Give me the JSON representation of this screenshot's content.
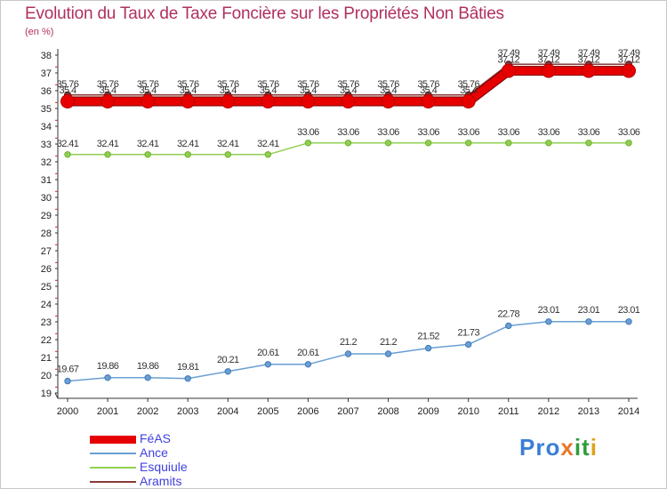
{
  "header": {
    "title": "Evolution du Taux de Taxe Foncière sur les Propriétés Non Bâties",
    "unit": "(en %)"
  },
  "logo": {
    "text": "Proxiti",
    "parts": [
      "Pro",
      "x",
      "it",
      "i"
    ]
  },
  "chart_data": {
    "type": "line",
    "title": "Evolution du Taux de Taxe Foncière sur les Propriétés Non Bâties",
    "ylabel": "(en %)",
    "xlabel": "",
    "ylim": [
      19,
      38
    ],
    "yticks": [
      19,
      20,
      21,
      22,
      23,
      24,
      25,
      26,
      27,
      28,
      29,
      30,
      31,
      32,
      33,
      34,
      35,
      36,
      37,
      38
    ],
    "x": [
      "2000",
      "2001",
      "2002",
      "2003",
      "2004",
      "2005",
      "2006",
      "2007",
      "2008",
      "2009",
      "2010",
      "2011",
      "2012",
      "2013",
      "2014"
    ],
    "grid": false,
    "legend_position": "bottom-left",
    "series": [
      {
        "name": "FéAS",
        "color": "#e60000",
        "values": [
          35.4,
          35.4,
          35.4,
          35.4,
          35.4,
          35.4,
          35.4,
          35.4,
          35.4,
          35.4,
          35.4,
          37.12,
          37.12,
          37.12,
          37.12
        ],
        "labels": [
          "35.4",
          "35.4",
          "35.4",
          "35.4",
          "35.4",
          "35.4",
          "35.4",
          "35.4",
          "35.4",
          "35.4",
          "35.4",
          "37.12",
          "37.12",
          "37.12",
          "37.12"
        ]
      },
      {
        "name": "Ance",
        "color": "#6a9fd4",
        "values": [
          19.67,
          19.86,
          19.86,
          19.81,
          20.21,
          20.61,
          20.61,
          21.2,
          21.2,
          21.52,
          21.73,
          22.78,
          23.01,
          23.01,
          23.01
        ],
        "labels": [
          "19.67",
          "19.86",
          "19.86",
          "19.81",
          "20.21",
          "20.61",
          "20.61",
          "21.2",
          "21.2",
          "21.52",
          "21.73",
          "22.78",
          "23.01",
          "23.01",
          "23.01"
        ]
      },
      {
        "name": "Esquiule",
        "color": "#90d050",
        "values": [
          32.41,
          32.41,
          32.41,
          32.41,
          32.41,
          32.41,
          33.06,
          33.06,
          33.06,
          33.06,
          33.06,
          33.06,
          33.06,
          33.06,
          33.06
        ],
        "labels": [
          "32.41",
          "32.41",
          "32.41",
          "32.41",
          "32.41",
          "32.41",
          "33.06",
          "33.06",
          "33.06",
          "33.06",
          "33.06",
          "33.06",
          "33.06",
          "33.06",
          "33.06"
        ]
      },
      {
        "name": "Aramits",
        "color": "#8b3a3a",
        "values": [
          35.76,
          35.76,
          35.76,
          35.76,
          35.76,
          35.76,
          35.76,
          35.76,
          35.76,
          35.76,
          35.76,
          37.49,
          37.49,
          37.49,
          37.49
        ],
        "labels": [
          "35.76",
          "35.76",
          "35.76",
          "35.76",
          "35.76",
          "35.76",
          "35.76",
          "35.76",
          "35.76",
          "35.76",
          "35.76",
          "37.49",
          "37.49",
          "37.49",
          "37.49"
        ]
      }
    ]
  }
}
